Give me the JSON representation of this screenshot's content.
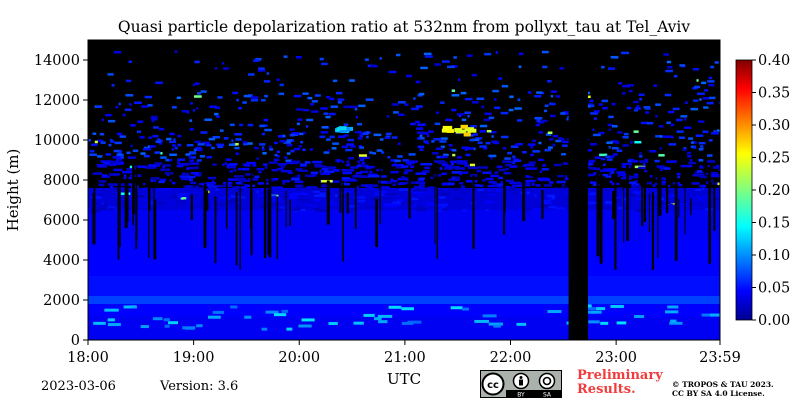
{
  "chart_data": {
    "type": "heatmap",
    "title": "Quasi particle depolarization ratio at 532nm from pollyxt_tau at Tel_Aviv",
    "xlabel": "UTC",
    "ylabel": "Height (m)",
    "x_ticks": [
      "18:00",
      "19:00",
      "20:00",
      "21:00",
      "22:00",
      "23:00",
      "23:59"
    ],
    "y_ticks": [
      "0",
      "2000",
      "4000",
      "6000",
      "8000",
      "10000",
      "12000",
      "14000"
    ],
    "ylim": [
      0,
      15000
    ],
    "colorbar": {
      "ticks": [
        "0.00",
        "0.05",
        "0.10",
        "0.15",
        "0.20",
        "0.25",
        "0.30",
        "0.35",
        "0.40"
      ],
      "range": [
        0.0,
        0.4
      ],
      "colormap": "jet"
    },
    "background_color": "#000000",
    "features": [
      {
        "type": "data_gap",
        "from": "22:33",
        "to": "22:44"
      },
      {
        "type": "elevated_depolarization",
        "time": "21:20-21:40",
        "height_m": [
          10300,
          10800
        ],
        "value": 0.25
      },
      {
        "type": "elevated_depolarization",
        "time": "20:20-20:25",
        "height_m": [
          10500,
          10700
        ],
        "value": 0.12
      }
    ],
    "grid": false
  },
  "footer": {
    "date": "2023-03-06",
    "version": "Version: 3.6",
    "preliminary_line1": "Preliminary",
    "preliminary_line2": "Results.",
    "copyright_line1": "© TROPOS & TAU 2023.",
    "copyright_line2": "CC BY SA 4.0 License.",
    "badge_text_by": "BY",
    "badge_text_sa": "SA",
    "badge_cc": "cc"
  },
  "colors": {
    "prelim": "#f03c3c",
    "low": "#0a3ad8",
    "mid": "#1f8fff",
    "high": "#ffee00"
  },
  "icons": [
    "cc-icon",
    "by-person-icon",
    "sa-icon"
  ]
}
